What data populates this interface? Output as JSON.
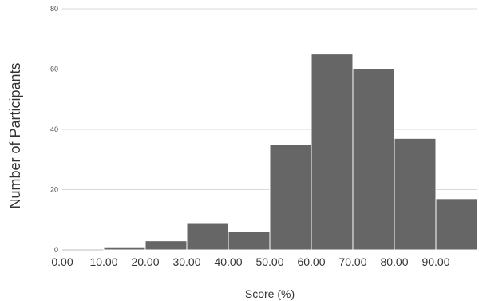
{
  "chart_data": {
    "type": "bar",
    "title": "",
    "xlabel": "Score (%)",
    "ylabel": "Number of Participants",
    "bins": [
      {
        "start": 0,
        "end": 10,
        "count": 0
      },
      {
        "start": 10,
        "end": 20,
        "count": 1
      },
      {
        "start": 20,
        "end": 30,
        "count": 3
      },
      {
        "start": 30,
        "end": 40,
        "count": 9
      },
      {
        "start": 40,
        "end": 50,
        "count": 6
      },
      {
        "start": 50,
        "end": 60,
        "count": 35
      },
      {
        "start": 60,
        "end": 70,
        "count": 65
      },
      {
        "start": 70,
        "end": 80,
        "count": 60
      },
      {
        "start": 80,
        "end": 90,
        "count": 37
      },
      {
        "start": 90,
        "end": 100,
        "count": 17
      }
    ],
    "x_tick_labels": [
      "0.00",
      "10.00",
      "20.00",
      "30.00",
      "40.00",
      "50.00",
      "60.00",
      "70.00",
      "80.00",
      "90.00"
    ],
    "y_tick_labels": [
      "0",
      "20",
      "40",
      "60",
      "80"
    ],
    "xlim": [
      0,
      100
    ],
    "ylim": [
      0,
      80
    ],
    "grid": true,
    "bar_color": "#666666",
    "grid_color": "#d9d9d9"
  }
}
